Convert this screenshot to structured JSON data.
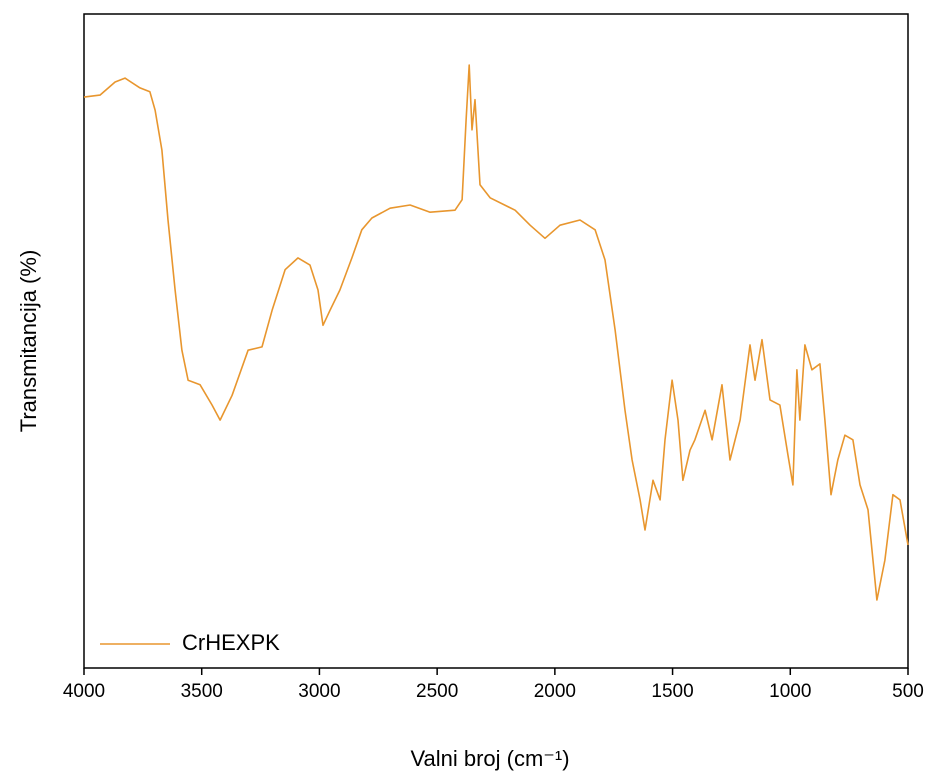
{
  "chart_data": {
    "type": "line",
    "xlabel": "Valni broj (cm⁻¹)",
    "ylabel": "Transmitancija (%)",
    "xlim": [
      4000,
      500
    ],
    "xticks": [
      4000,
      3500,
      3000,
      2500,
      2000,
      1500,
      1000,
      500
    ],
    "ylim": [
      0,
      100
    ],
    "legend": "lower left",
    "series": [
      {
        "name": "CrHEXPK",
        "color": "#e8962e",
        "x": [
          4000,
          3932,
          3868,
          3826,
          3762,
          3720,
          3698,
          3669,
          3643,
          3613,
          3584,
          3558,
          3507,
          3456,
          3422,
          3371,
          3303,
          3244,
          3201,
          3146,
          3091,
          3040,
          3006,
          2985,
          2955,
          2913,
          2862,
          2820,
          2777,
          2700,
          2615,
          2530,
          2424,
          2394,
          2377,
          2364,
          2352,
          2339,
          2318,
          2275,
          2169,
          2105,
          2042,
          1978,
          1893,
          1829,
          1787,
          1744,
          1702,
          1672,
          1638,
          1617,
          1583,
          1553,
          1532,
          1502,
          1477,
          1456,
          1426,
          1405,
          1362,
          1332,
          1290,
          1256,
          1213,
          1171,
          1150,
          1120,
          1086,
          1044,
          1010,
          989,
          972,
          959,
          938,
          908,
          874,
          853,
          827,
          798,
          768,
          734,
          704,
          670,
          632,
          598,
          564,
          534,
          500
        ],
        "values": [
          87.3,
          87.6,
          89.6,
          90.2,
          88.7,
          88.1,
          85.3,
          79.2,
          68.5,
          57.8,
          48.6,
          44.0,
          43.3,
          40.2,
          37.9,
          41.7,
          48.6,
          49.1,
          54.7,
          60.9,
          62.7,
          61.6,
          57.8,
          52.4,
          54.7,
          57.8,
          62.7,
          67.0,
          68.8,
          70.3,
          70.8,
          69.7,
          70.0,
          71.6,
          83.8,
          92.2,
          82.3,
          86.9,
          73.9,
          71.9,
          70.0,
          67.7,
          65.7,
          67.7,
          68.5,
          67.0,
          62.4,
          51.7,
          39.4,
          31.8,
          25.7,
          21.1,
          28.7,
          25.7,
          34.9,
          44.0,
          37.9,
          28.7,
          33.3,
          34.9,
          39.4,
          34.9,
          43.3,
          31.8,
          37.9,
          49.4,
          44.0,
          50.2,
          41.0,
          40.2,
          32.6,
          28.0,
          45.6,
          37.9,
          49.4,
          45.6,
          46.5,
          37.9,
          26.5,
          31.8,
          35.6,
          34.9,
          28.0,
          24.2,
          10.4,
          16.5,
          26.5,
          25.7,
          18.8
        ]
      }
    ]
  }
}
